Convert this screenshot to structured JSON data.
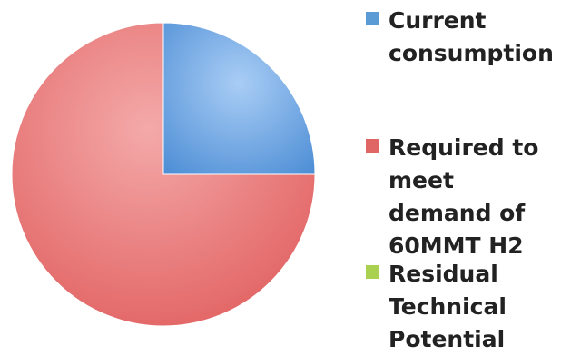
{
  "chart_data": {
    "type": "pie",
    "title": "",
    "slices": [
      {
        "label": "Current consumption",
        "value": 25,
        "color": "#5b9bd5"
      },
      {
        "label": "Required to meet demand of 60MMT H2",
        "value": 75,
        "color": "#e06666"
      },
      {
        "label": "Residual Technical Potential",
        "value": 0,
        "color": "#a9d04f"
      }
    ],
    "legend_position": "right",
    "start_angle_deg": 0
  },
  "legend": {
    "items": [
      {
        "label": "Current consumption",
        "color": "#5b9bd5"
      },
      {
        "label": "Required to meet demand of 60MMT H2",
        "color": "#e06666"
      },
      {
        "label": "Residual Technical Potential",
        "color": "#a9d04f"
      }
    ]
  }
}
